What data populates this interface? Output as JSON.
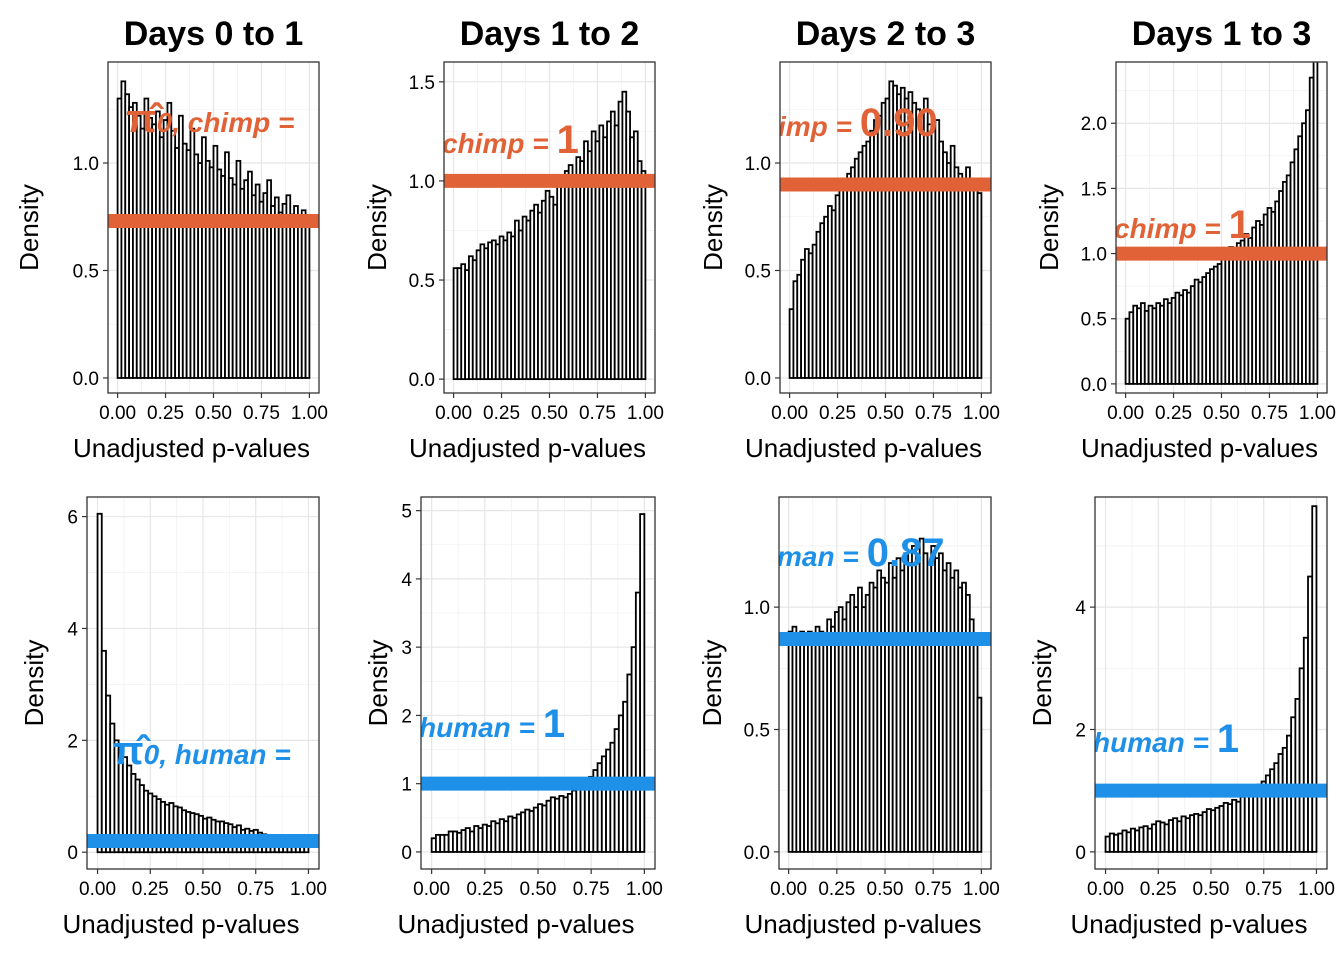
{
  "colors": {
    "chimp": "#e06236",
    "human": "#1e90e8"
  },
  "chart_data": [
    {
      "type": "bar",
      "title": "Days 0 to 1",
      "xlabel": "Unadjusted p-values",
      "ylabel": "Density",
      "xlim": [
        -0.05,
        1.05
      ],
      "ylim": [
        -0.07,
        1.47
      ],
      "xticks": [
        0,
        0.25,
        0.5,
        0.75,
        1
      ],
      "xtick_labels": [
        "0.00",
        "0.25",
        "0.50",
        "0.75",
        "1.00"
      ],
      "yticks": [
        0,
        0.5,
        1
      ],
      "ytick_labels": [
        "0.0",
        "0.5",
        "1.0"
      ],
      "bin_width": 0.02,
      "values": [
        1.3,
        1.38,
        1.32,
        1.26,
        1.28,
        1.22,
        1.16,
        1.3,
        1.21,
        1.18,
        1.24,
        1.12,
        1.2,
        1.28,
        1.15,
        1.07,
        1.22,
        1.09,
        1.06,
        1.16,
        1.04,
        1.0,
        1.12,
        1.01,
        0.98,
        1.08,
        0.97,
        0.94,
        1.05,
        0.93,
        0.9,
        1.01,
        0.88,
        0.92,
        0.96,
        0.85,
        0.9,
        0.82,
        0.86,
        0.92,
        0.8,
        0.84,
        0.77,
        0.81,
        0.85,
        0.76,
        0.8,
        0.74,
        0.78,
        0.72
      ],
      "hline": 0.73,
      "line_color": "chimp",
      "annotation": {
        "prefix": "π̂",
        "middle": "0, chimp =",
        "value": ""
      }
    },
    {
      "type": "bar",
      "title": "Days 1 to 2",
      "xlabel": "Unadjusted p-values",
      "ylabel": "Density",
      "xlim": [
        -0.05,
        1.05
      ],
      "ylim": [
        -0.07,
        1.6
      ],
      "xticks": [
        0,
        0.25,
        0.5,
        0.75,
        1
      ],
      "xtick_labels": [
        "0.00",
        "0.25",
        "0.50",
        "0.75",
        "1.00"
      ],
      "yticks": [
        0,
        0.5,
        1,
        1.5
      ],
      "ytick_labels": [
        "0.0",
        "0.5",
        "1.0",
        "1.5"
      ],
      "bin_width": 0.02,
      "values": [
        0.56,
        0.56,
        0.58,
        0.55,
        0.62,
        0.6,
        0.65,
        0.68,
        0.66,
        0.69,
        0.7,
        0.68,
        0.72,
        0.7,
        0.74,
        0.72,
        0.8,
        0.75,
        0.82,
        0.8,
        0.85,
        0.88,
        0.84,
        0.9,
        0.95,
        0.92,
        0.88,
        1.0,
        0.98,
        1.05,
        1.08,
        1.02,
        1.12,
        1.1,
        1.2,
        1.15,
        1.25,
        1.2,
        1.28,
        1.22,
        1.3,
        1.35,
        1.28,
        1.4,
        1.45,
        1.35,
        1.22,
        1.25,
        1.1,
        1.05
      ],
      "hline": 1.0,
      "line_color": "chimp",
      "annotation": {
        "prefix": "",
        "middle": "chimp =",
        "value": "1"
      }
    },
    {
      "type": "bar",
      "title": "Days 2 to 3",
      "xlabel": "Unadjusted p-values",
      "ylabel": "Density",
      "xlim": [
        -0.05,
        1.05
      ],
      "ylim": [
        -0.07,
        1.47
      ],
      "xticks": [
        0,
        0.25,
        0.5,
        0.75,
        1
      ],
      "xtick_labels": [
        "0.00",
        "0.25",
        "0.50",
        "0.75",
        "1.00"
      ],
      "yticks": [
        0,
        0.5,
        1
      ],
      "ytick_labels": [
        "0.0",
        "0.5",
        "1.0"
      ],
      "bin_width": 0.02,
      "values": [
        0.32,
        0.45,
        0.48,
        0.55,
        0.6,
        0.58,
        0.62,
        0.68,
        0.72,
        0.75,
        0.8,
        0.78,
        0.85,
        0.88,
        0.9,
        0.95,
        0.98,
        1.02,
        1.05,
        1.08,
        1.1,
        1.15,
        1.2,
        1.22,
        1.28,
        1.3,
        1.38,
        1.36,
        1.32,
        1.35,
        1.3,
        1.33,
        1.28,
        1.25,
        1.22,
        1.3,
        1.18,
        1.15,
        1.2,
        1.1,
        1.05,
        1.0,
        1.08,
        0.98,
        0.95,
        0.92,
        0.98,
        0.9,
        0.88,
        0.86
      ],
      "hline": 0.9,
      "line_color": "chimp",
      "annotation": {
        "prefix": "",
        "middle": "imp =",
        "value": "0.90"
      }
    },
    {
      "type": "bar",
      "title": "Days 1 to 3",
      "xlabel": "Unadjusted p-values",
      "ylabel": "Density",
      "xlim": [
        -0.05,
        1.05
      ],
      "ylim": [
        -0.07,
        2.47
      ],
      "xticks": [
        0,
        0.25,
        0.5,
        0.75,
        1
      ],
      "xtick_labels": [
        "0.00",
        "0.25",
        "0.50",
        "0.75",
        "1.00"
      ],
      "yticks": [
        0,
        0.5,
        1,
        1.5,
        2
      ],
      "ytick_labels": [
        "0.0",
        "0.5",
        "1.0",
        "1.5",
        "2.0"
      ],
      "bin_width": 0.02,
      "values": [
        0.5,
        0.55,
        0.6,
        0.58,
        0.62,
        0.56,
        0.6,
        0.58,
        0.62,
        0.6,
        0.65,
        0.62,
        0.66,
        0.7,
        0.68,
        0.72,
        0.7,
        0.75,
        0.8,
        0.78,
        0.82,
        0.85,
        0.88,
        0.9,
        0.92,
        0.98,
        1.0,
        1.05,
        1.02,
        1.08,
        1.1,
        1.15,
        1.12,
        1.2,
        1.25,
        1.22,
        1.3,
        1.35,
        1.32,
        1.4,
        1.48,
        1.55,
        1.6,
        1.7,
        1.8,
        1.9,
        2.0,
        2.1,
        2.35,
        2.5
      ],
      "hline": 1.0,
      "line_color": "chimp",
      "annotation": {
        "prefix": "",
        "middle": "chimp =",
        "value": "1"
      }
    },
    {
      "type": "bar",
      "title": "",
      "xlabel": "Unadjusted p-values",
      "ylabel": "Density",
      "xlim": [
        -0.05,
        1.05
      ],
      "ylim": [
        -0.3,
        6.35
      ],
      "xticks": [
        0,
        0.25,
        0.5,
        0.75,
        1
      ],
      "xtick_labels": [
        "0.00",
        "0.25",
        "0.50",
        "0.75",
        "1.00"
      ],
      "yticks": [
        0,
        2,
        4,
        6
      ],
      "ytick_labels": [
        "0",
        "2",
        "4",
        "6"
      ],
      "bin_width": 0.02,
      "values": [
        6.05,
        3.6,
        2.8,
        2.3,
        2.0,
        1.85,
        1.7,
        1.55,
        1.4,
        1.3,
        1.2,
        1.1,
        1.05,
        1.0,
        0.95,
        0.9,
        0.85,
        0.88,
        0.82,
        0.8,
        0.75,
        0.72,
        0.7,
        0.68,
        0.65,
        0.6,
        0.62,
        0.58,
        0.55,
        0.55,
        0.52,
        0.5,
        0.45,
        0.48,
        0.4,
        0.42,
        0.38,
        0.4,
        0.35,
        0.32,
        0.3,
        0.3,
        0.28,
        0.25,
        0.28,
        0.22,
        0.22,
        0.2,
        0.18,
        0.18
      ],
      "hline": 0.2,
      "line_color": "human",
      "annotation": {
        "prefix": "π̂",
        "middle": "0, human =",
        "value": ""
      }
    },
    {
      "type": "bar",
      "title": "",
      "xlabel": "Unadjusted p-values",
      "ylabel": "Density",
      "xlim": [
        -0.05,
        1.05
      ],
      "ylim": [
        -0.25,
        5.2
      ],
      "xticks": [
        0,
        0.25,
        0.5,
        0.75,
        1
      ],
      "xtick_labels": [
        "0.00",
        "0.25",
        "0.50",
        "0.75",
        "1.00"
      ],
      "yticks": [
        0,
        1,
        2,
        3,
        4,
        5
      ],
      "ytick_labels": [
        "0",
        "1",
        "2",
        "3",
        "4",
        "5"
      ],
      "bin_width": 0.02,
      "values": [
        0.2,
        0.25,
        0.25,
        0.25,
        0.3,
        0.3,
        0.28,
        0.32,
        0.35,
        0.3,
        0.38,
        0.35,
        0.4,
        0.38,
        0.45,
        0.42,
        0.48,
        0.45,
        0.52,
        0.5,
        0.55,
        0.58,
        0.62,
        0.6,
        0.65,
        0.7,
        0.68,
        0.75,
        0.8,
        0.78,
        0.82,
        0.8,
        0.85,
        0.9,
        0.95,
        1.0,
        1.05,
        1.1,
        1.2,
        1.3,
        1.4,
        1.5,
        1.6,
        1.8,
        2.0,
        2.2,
        2.6,
        3.0,
        3.8,
        4.95
      ],
      "hline": 1.0,
      "line_color": "human",
      "annotation": {
        "prefix": "",
        "middle": "human =",
        "value": "1"
      }
    },
    {
      "type": "bar",
      "title": "",
      "xlabel": "Unadjusted p-values",
      "ylabel": "Density",
      "xlim": [
        -0.05,
        1.05
      ],
      "ylim": [
        -0.07,
        1.45
      ],
      "xticks": [
        0,
        0.25,
        0.5,
        0.75,
        1
      ],
      "xtick_labels": [
        "0.00",
        "0.25",
        "0.50",
        "0.75",
        "1.00"
      ],
      "yticks": [
        0,
        0.5,
        1
      ],
      "ytick_labels": [
        "0.0",
        "0.5",
        "1.0"
      ],
      "bin_width": 0.02,
      "values": [
        0.9,
        0.92,
        0.88,
        0.9,
        0.86,
        0.9,
        0.88,
        0.92,
        0.9,
        0.88,
        0.95,
        0.92,
        0.98,
        1.0,
        0.95,
        1.02,
        1.05,
        1.0,
        1.08,
        1.0,
        1.05,
        1.1,
        1.08,
        1.15,
        1.12,
        1.1,
        1.18,
        1.12,
        1.2,
        1.15,
        1.22,
        1.18,
        1.25,
        1.2,
        1.28,
        1.22,
        1.18,
        1.25,
        1.2,
        1.22,
        1.15,
        1.18,
        1.12,
        1.15,
        1.08,
        1.1,
        1.05,
        0.95,
        0.85,
        0.63
      ],
      "hline": 0.87,
      "line_color": "human",
      "annotation": {
        "prefix": "",
        "middle": "man =",
        "value": "0.87"
      }
    },
    {
      "type": "bar",
      "title": "",
      "xlabel": "Unadjusted p-values",
      "ylabel": "Density",
      "xlim": [
        -0.05,
        1.05
      ],
      "ylim": [
        -0.28,
        5.8
      ],
      "xticks": [
        0,
        0.25,
        0.5,
        0.75,
        1
      ],
      "xtick_labels": [
        "0.00",
        "0.25",
        "0.50",
        "0.75",
        "1.00"
      ],
      "yticks": [
        0,
        2,
        4
      ],
      "ytick_labels": [
        "0",
        "2",
        "4"
      ],
      "bin_width": 0.02,
      "values": [
        0.25,
        0.3,
        0.28,
        0.3,
        0.35,
        0.32,
        0.38,
        0.35,
        0.4,
        0.42,
        0.38,
        0.45,
        0.5,
        0.48,
        0.45,
        0.52,
        0.55,
        0.5,
        0.58,
        0.55,
        0.6,
        0.62,
        0.6,
        0.65,
        0.7,
        0.68,
        0.72,
        0.75,
        0.8,
        0.78,
        0.85,
        0.82,
        0.9,
        0.95,
        1.0,
        1.05,
        1.1,
        1.15,
        1.25,
        1.35,
        1.45,
        1.6,
        1.7,
        1.9,
        2.2,
        2.5,
        3.0,
        3.5,
        4.5,
        5.65
      ],
      "hline": 1.0,
      "line_color": "human",
      "annotation": {
        "prefix": "",
        "middle": "human =",
        "value": "1"
      }
    }
  ]
}
